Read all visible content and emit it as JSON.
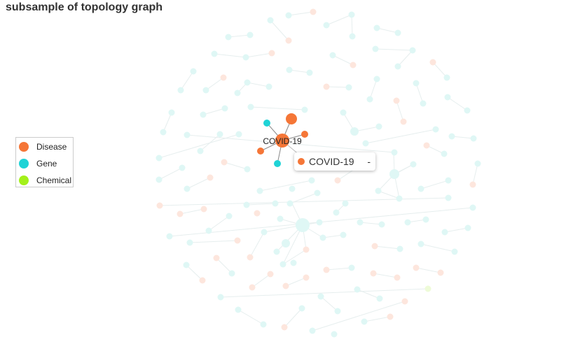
{
  "title": "subsample of topology graph",
  "legend": {
    "items": [
      {
        "label": "Disease",
        "color": "#f57637"
      },
      {
        "label": "Gene",
        "color": "#1fd3d6"
      },
      {
        "label": "Chemical",
        "color": "#a3f01a"
      }
    ]
  },
  "tooltip": {
    "name": "COVID-19",
    "value": "-",
    "color": "#f57637"
  },
  "chart_data": {
    "type": "graph",
    "title": "subsample of topology graph",
    "categories": [
      "Disease",
      "Gene",
      "Chemical"
    ],
    "highlighted_node": "COVID-19",
    "highlighted_neighbors": [
      {
        "category": "Disease"
      },
      {
        "category": "Disease"
      },
      {
        "category": "Disease"
      },
      {
        "category": "Gene"
      },
      {
        "category": "Gene"
      }
    ],
    "node_label": "COVID-19"
  }
}
